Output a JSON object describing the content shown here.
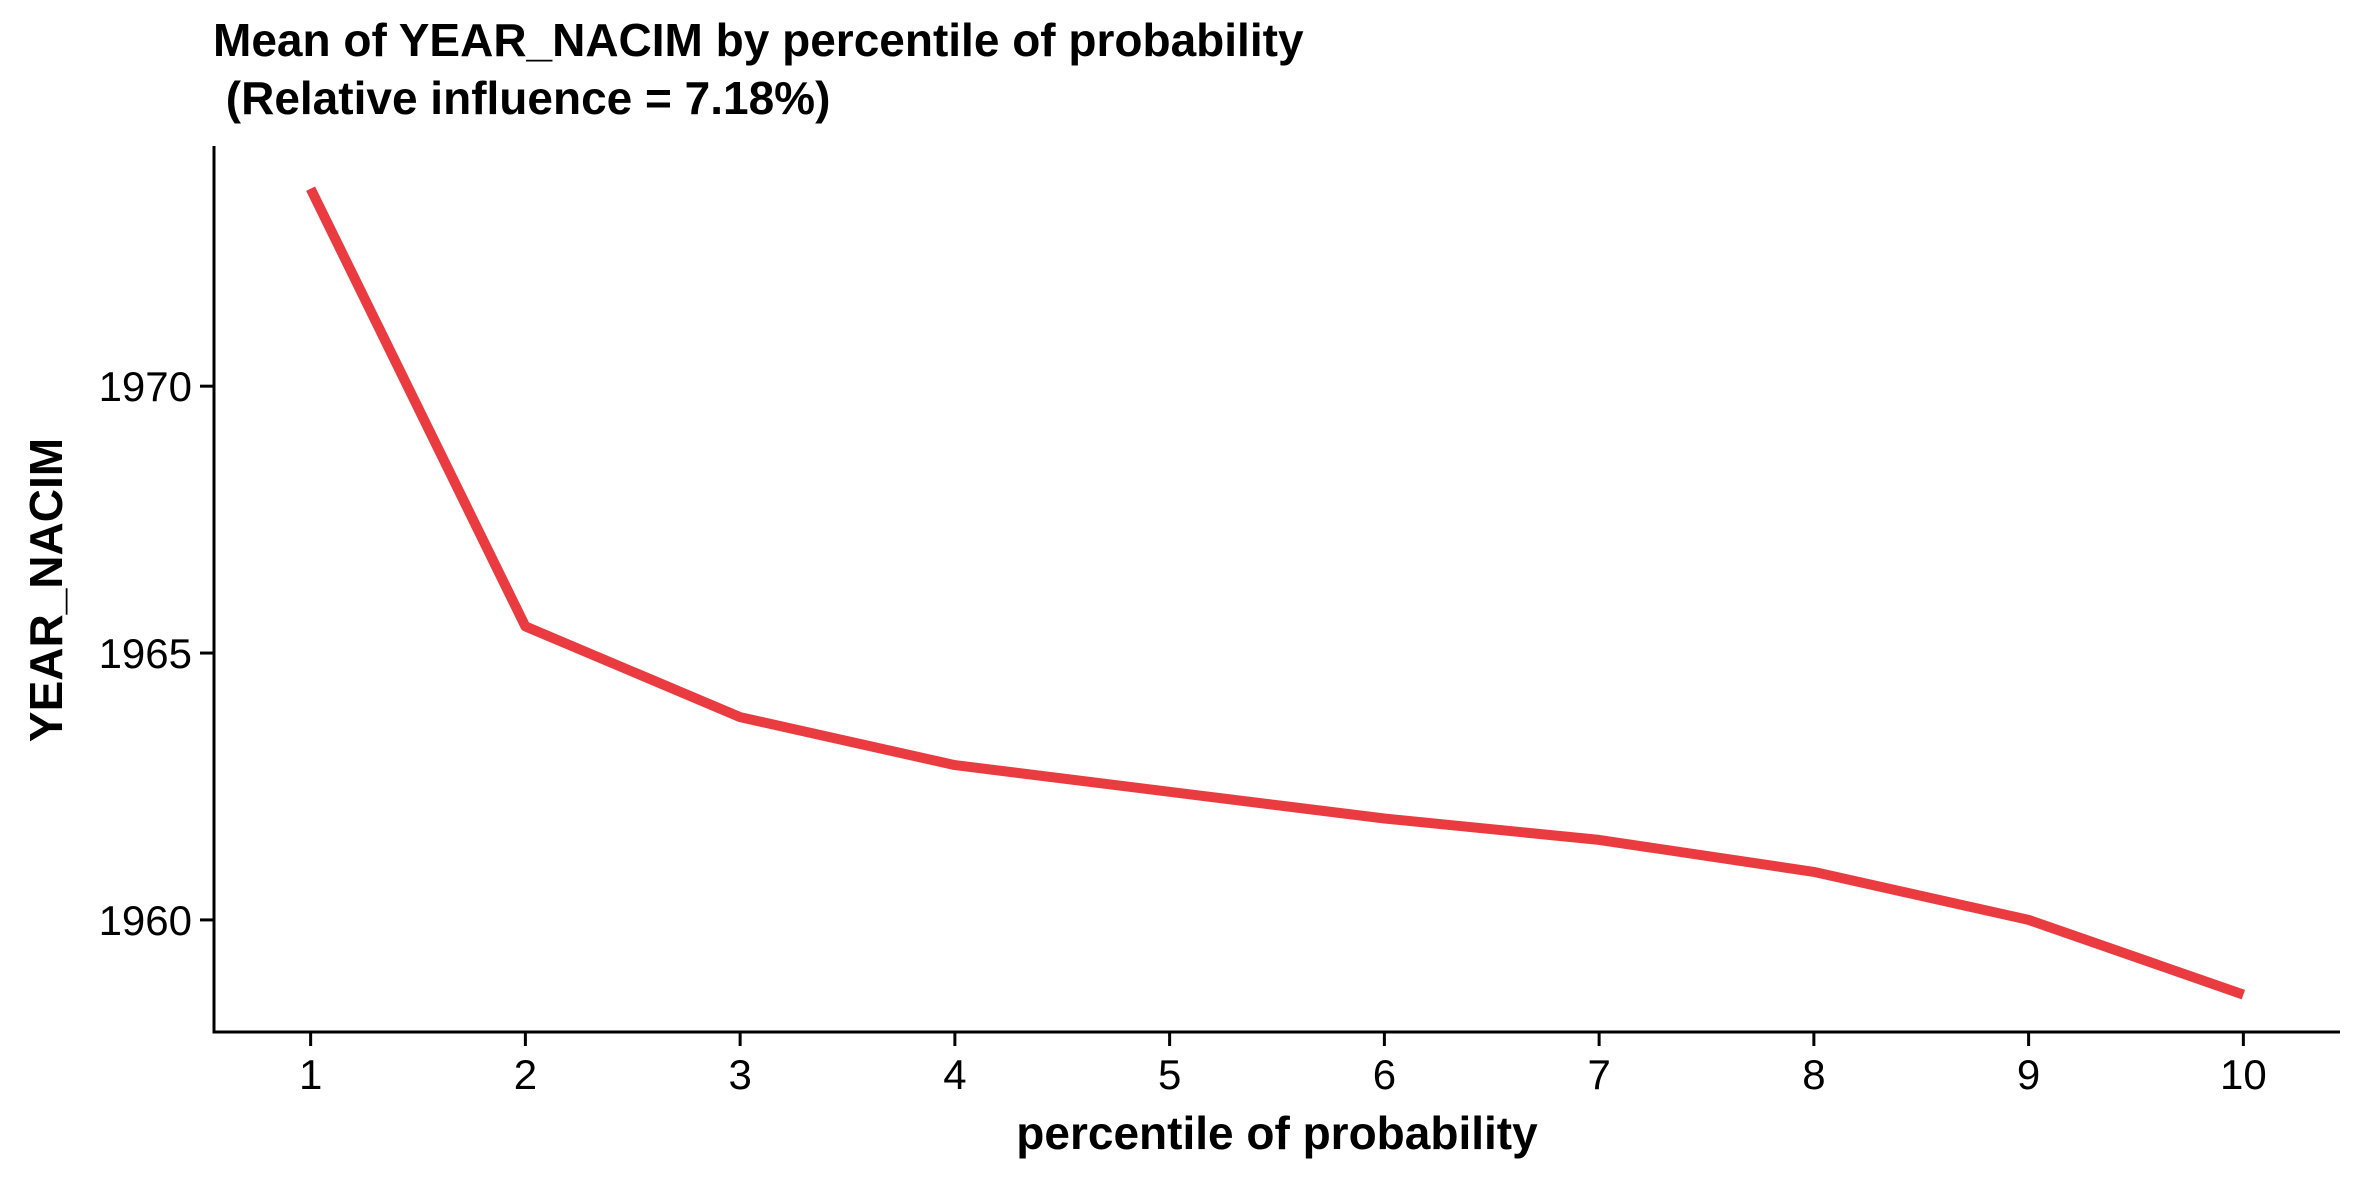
{
  "chart_data": {
    "type": "line",
    "title_line1": "Mean of YEAR_NACIM by percentile of probability",
    "title_line2": " (Relative influence = 7.18%)",
    "xlabel": "percentile of probability",
    "ylabel": "YEAR_NACIM",
    "x": [
      1,
      2,
      3,
      4,
      5,
      6,
      7,
      8,
      9,
      10
    ],
    "series": [
      {
        "values": [
          1973.7,
          1965.5,
          1963.8,
          1962.9,
          1962.4,
          1961.9,
          1961.5,
          1960.9,
          1960.0,
          1958.6
        ],
        "color": "#ea3c40"
      }
    ],
    "xlim": [
      0.55,
      10.45
    ],
    "ylim": [
      1957.9,
      1974.5
    ],
    "x_ticks": [
      1,
      2,
      3,
      4,
      5,
      6,
      7,
      8,
      9,
      10
    ],
    "y_ticks": [
      1960,
      1965,
      1970
    ],
    "grid": false,
    "legend": "none"
  }
}
